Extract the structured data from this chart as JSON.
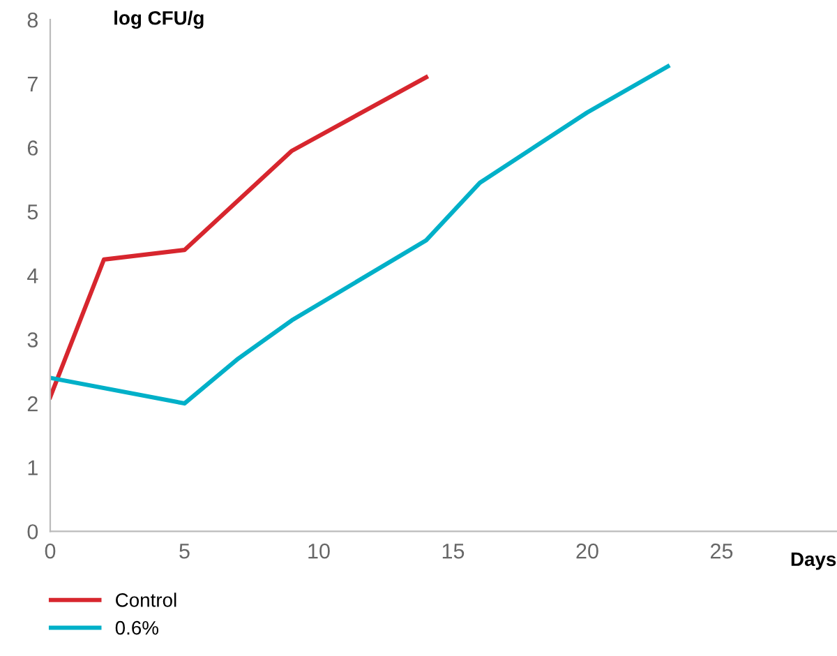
{
  "chart_data": {
    "type": "line",
    "xlabel": "Days",
    "ylabel": "log CFU/g",
    "xlim": [
      0,
      29.3
    ],
    "ylim": [
      0,
      8
    ],
    "xticks": [
      0,
      5,
      10,
      15,
      20,
      25
    ],
    "yticks": [
      0,
      1,
      2,
      3,
      4,
      5,
      6,
      7,
      8
    ],
    "grid": false,
    "legend": "bottom",
    "marker": "none",
    "line_style": "solid",
    "series": [
      {
        "name": "Control",
        "color": "#d7262e",
        "x": [
          0,
          2,
          5,
          9,
          14
        ],
        "values": [
          2.1,
          4.25,
          4.4,
          5.95,
          7.1
        ]
      },
      {
        "name": "0.6%",
        "color": "#00b0c8",
        "x": [
          0,
          5,
          7,
          9,
          14,
          16,
          20,
          23
        ],
        "values": [
          2.4,
          2.0,
          2.7,
          3.3,
          4.55,
          5.45,
          6.55,
          7.27
        ]
      }
    ]
  }
}
